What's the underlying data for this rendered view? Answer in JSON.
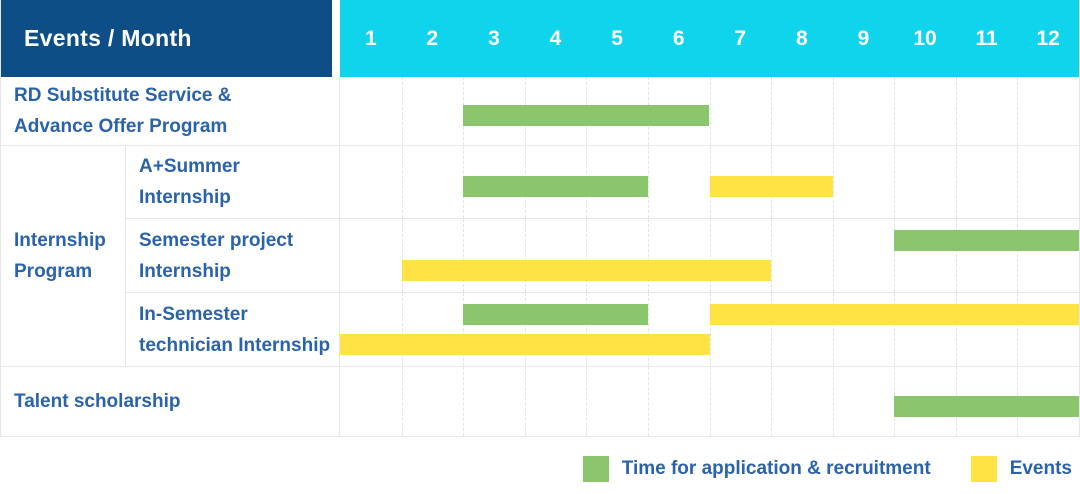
{
  "header": {
    "title": "Events / Month",
    "months": [
      "1",
      "2",
      "3",
      "4",
      "5",
      "6",
      "7",
      "8",
      "9",
      "10",
      "11",
      "12"
    ]
  },
  "colors": {
    "navy": "#0e4e87",
    "cyan": "#10d3ec",
    "green": "#8bc56e",
    "yellow": "#ffe345",
    "text_blue": "#2a63a8"
  },
  "legend": {
    "application_label": "Time for application & recruitment",
    "events_label": "Events"
  },
  "chart_data": {
    "type": "gantt",
    "title": "Events / Month",
    "x_axis": {
      "unit": "month",
      "ticks": [
        1,
        2,
        3,
        4,
        5,
        6,
        7,
        8,
        9,
        10,
        11,
        12
      ]
    },
    "legend": {
      "green": "Time for application & recruitment",
      "yellow": "Events"
    },
    "rows": [
      {
        "group": "",
        "label_lines": [
          "RD Substitute Service &",
          "Advance Offer Program"
        ],
        "lines": [
          [
            {
              "color": "green",
              "kind": "Time for application & recruitment",
              "from_month": 3,
              "to_month": 6
            }
          ]
        ]
      },
      {
        "group": "Internship Program",
        "label_lines": [
          "A+Summer",
          "Internship"
        ],
        "lines": [
          [
            {
              "color": "green",
              "kind": "Time for application & recruitment",
              "from_month": 3,
              "to_month": 5
            },
            {
              "color": "yellow",
              "kind": "Events",
              "from_month": 7,
              "to_month": 8
            }
          ]
        ]
      },
      {
        "group": "Internship Program",
        "label_lines": [
          "Semester project",
          "Internship"
        ],
        "lines": [
          [
            {
              "color": "green",
              "kind": "Time for application & recruitment",
              "from_month": 10,
              "to_month": 12
            }
          ],
          [
            {
              "color": "yellow",
              "kind": "Events",
              "from_month": 2,
              "to_month": 7
            }
          ]
        ]
      },
      {
        "group": "Internship Program",
        "label_lines": [
          "In-Semester",
          "technician Internship"
        ],
        "lines": [
          [
            {
              "color": "green",
              "kind": "Time for application & recruitment",
              "from_month": 3,
              "to_month": 5
            },
            {
              "color": "yellow",
              "kind": "Events",
              "from_month": 7,
              "to_month": 12
            }
          ],
          [
            {
              "color": "yellow",
              "kind": "Events",
              "from_month": 1,
              "to_month": 6
            }
          ]
        ]
      },
      {
        "group": "",
        "label_lines": [
          "Talent scholarship"
        ],
        "lines": [
          [
            {
              "color": "green",
              "kind": "Time for application & recruitment",
              "from_month": 10,
              "to_month": 12
            }
          ]
        ]
      }
    ],
    "group_label_lines": [
      "Internship",
      "Program"
    ]
  }
}
